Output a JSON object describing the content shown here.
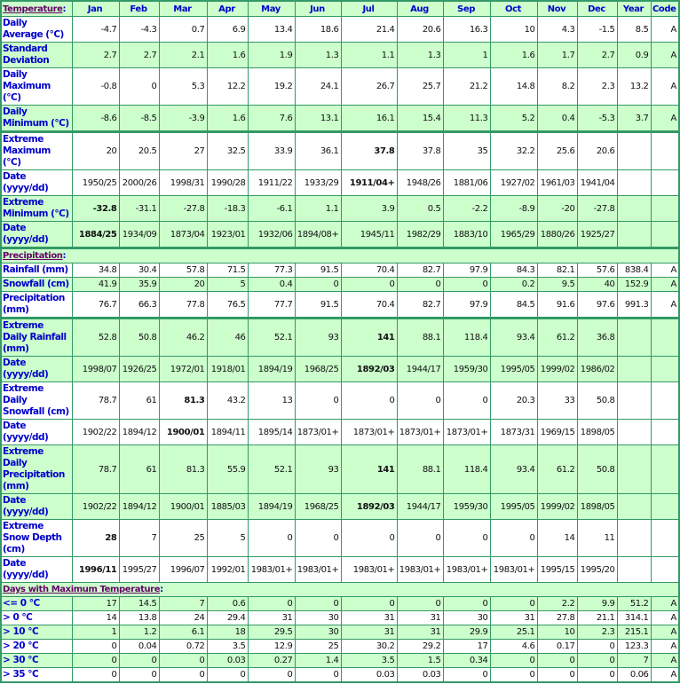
{
  "columns": [
    "Jan",
    "Feb",
    "Mar",
    "Apr",
    "May",
    "Jun",
    "Jul",
    "Aug",
    "Sep",
    "Oct",
    "Nov",
    "Dec",
    "Year",
    "Code"
  ],
  "sections": [
    {
      "title": "Temperature",
      "rows": [
        {
          "label": "Daily Average (°C)",
          "values": [
            "-4.7",
            "-4.3",
            "0.7",
            "6.9",
            "13.4",
            "18.6",
            "21.4",
            "20.6",
            "16.3",
            "10",
            "4.3",
            "-1.5",
            "8.5",
            "A"
          ],
          "bold": []
        },
        {
          "label": "Standard Deviation",
          "values": [
            "2.7",
            "2.7",
            "2.1",
            "1.6",
            "1.9",
            "1.3",
            "1.1",
            "1.3",
            "1",
            "1.6",
            "1.7",
            "2.7",
            "0.9",
            "A"
          ],
          "bold": []
        },
        {
          "label": "Daily Maximum (°C)",
          "values": [
            "-0.8",
            "0",
            "5.3",
            "12.2",
            "19.2",
            "24.1",
            "26.7",
            "25.7",
            "21.2",
            "14.8",
            "8.2",
            "2.3",
            "13.2",
            "A"
          ],
          "bold": []
        },
        {
          "label": "Daily Minimum (°C)",
          "values": [
            "-8.6",
            "-8.5",
            "-3.9",
            "1.6",
            "7.6",
            "13.1",
            "16.1",
            "15.4",
            "11.3",
            "5.2",
            "0.4",
            "-5.3",
            "3.7",
            "A"
          ],
          "bold": []
        },
        {
          "label": "Extreme Maximum (°C)",
          "values": [
            "20",
            "20.5",
            "27",
            "32.5",
            "33.9",
            "36.1",
            "37.8",
            "37.8",
            "35",
            "32.2",
            "25.6",
            "20.6",
            "",
            ""
          ],
          "bold": [
            6
          ]
        },
        {
          "label": "Date (yyyy/dd)",
          "values": [
            "1950/25",
            "2000/26",
            "1998/31",
            "1990/28",
            "1911/22",
            "1933/29",
            "1911/04+",
            "1948/26",
            "1881/06",
            "1927/02",
            "1961/03",
            "1941/04",
            "",
            ""
          ],
          "bold": [
            6
          ]
        },
        {
          "label": "Extreme Minimum (°C)",
          "values": [
            "-32.8",
            "-31.1",
            "-27.8",
            "-18.3",
            "-6.1",
            "1.1",
            "3.9",
            "0.5",
            "-2.2",
            "-8.9",
            "-20",
            "-27.8",
            "",
            ""
          ],
          "bold": [
            0
          ]
        },
        {
          "label": "Date (yyyy/dd)",
          "values": [
            "1884/25",
            "1934/09",
            "1873/04",
            "1923/01",
            "1932/06",
            "1894/08+",
            "1945/11",
            "1982/29",
            "1883/10",
            "1965/29",
            "1880/26",
            "1925/27",
            "",
            ""
          ],
          "bold": [
            0
          ]
        }
      ]
    },
    {
      "title": "Precipitation",
      "rows": [
        {
          "label": "Rainfall (mm)",
          "values": [
            "34.8",
            "30.4",
            "57.8",
            "71.5",
            "77.3",
            "91.5",
            "70.4",
            "82.7",
            "97.9",
            "84.3",
            "82.1",
            "57.6",
            "838.4",
            "A"
          ],
          "bold": []
        },
        {
          "label": "Snowfall (cm)",
          "values": [
            "41.9",
            "35.9",
            "20",
            "5",
            "0.4",
            "0",
            "0",
            "0",
            "0",
            "0.2",
            "9.5",
            "40",
            "152.9",
            "A"
          ],
          "bold": []
        },
        {
          "label": "Precipitation (mm)",
          "values": [
            "76.7",
            "66.3",
            "77.8",
            "76.5",
            "77.7",
            "91.5",
            "70.4",
            "82.7",
            "97.9",
            "84.5",
            "91.6",
            "97.6",
            "991.3",
            "A"
          ],
          "bold": []
        },
        {
          "label": "Extreme Daily Rainfall (mm)",
          "values": [
            "52.8",
            "50.8",
            "46.2",
            "46",
            "52.1",
            "93",
            "141",
            "88.1",
            "118.4",
            "93.4",
            "61.2",
            "36.8",
            "",
            ""
          ],
          "bold": [
            6
          ]
        },
        {
          "label": "Date (yyyy/dd)",
          "values": [
            "1998/07",
            "1926/25",
            "1972/01",
            "1918/01",
            "1894/19",
            "1968/25",
            "1892/03",
            "1944/17",
            "1959/30",
            "1995/05",
            "1999/02",
            "1986/02",
            "",
            ""
          ],
          "bold": [
            6
          ]
        },
        {
          "label": "Extreme Daily Snowfall (cm)",
          "values": [
            "78.7",
            "61",
            "81.3",
            "43.2",
            "13",
            "0",
            "0",
            "0",
            "0",
            "20.3",
            "33",
            "50.8",
            "",
            ""
          ],
          "bold": [
            2
          ]
        },
        {
          "label": "Date (yyyy/dd)",
          "values": [
            "1902/22",
            "1894/12",
            "1900/01",
            "1894/11",
            "1895/14",
            "1873/01+",
            "1873/01+",
            "1873/01+",
            "1873/01+",
            "1873/31",
            "1969/15",
            "1898/05",
            "",
            ""
          ],
          "bold": [
            2
          ]
        },
        {
          "label": "Extreme Daily Precipitation (mm)",
          "values": [
            "78.7",
            "61",
            "81.3",
            "55.9",
            "52.1",
            "93",
            "141",
            "88.1",
            "118.4",
            "93.4",
            "61.2",
            "50.8",
            "",
            ""
          ],
          "bold": [
            6
          ]
        },
        {
          "label": "Date (yyyy/dd)",
          "values": [
            "1902/22",
            "1894/12",
            "1900/01",
            "1885/03",
            "1894/19",
            "1968/25",
            "1892/03",
            "1944/17",
            "1959/30",
            "1995/05",
            "1999/02",
            "1898/05",
            "",
            ""
          ],
          "bold": [
            6
          ]
        },
        {
          "label": "Extreme Snow Depth (cm)",
          "values": [
            "28",
            "7",
            "25",
            "5",
            "0",
            "0",
            "0",
            "0",
            "0",
            "0",
            "14",
            "11",
            "",
            ""
          ],
          "bold": [
            0
          ]
        },
        {
          "label": "Date (yyyy/dd)",
          "values": [
            "1996/11",
            "1995/27",
            "1996/07",
            "1992/01",
            "1983/01+",
            "1983/01+",
            "1983/01+",
            "1983/01+",
            "1983/01+",
            "1983/01+",
            "1995/15",
            "1995/20",
            "",
            ""
          ],
          "bold": [
            0
          ]
        }
      ]
    },
    {
      "title": "Days with Maximum Temperature",
      "rows": [
        {
          "label": "<= 0 °C",
          "values": [
            "17",
            "14.5",
            "7",
            "0.6",
            "0",
            "0",
            "0",
            "0",
            "0",
            "0",
            "2.2",
            "9.9",
            "51.2",
            "A"
          ],
          "bold": []
        },
        {
          "label": "> 0 °C",
          "values": [
            "14",
            "13.8",
            "24",
            "29.4",
            "31",
            "30",
            "31",
            "31",
            "30",
            "31",
            "27.8",
            "21.1",
            "314.1",
            "A"
          ],
          "bold": []
        },
        {
          "label": "> 10 °C",
          "values": [
            "1",
            "1.2",
            "6.1",
            "18",
            "29.5",
            "30",
            "31",
            "31",
            "29.9",
            "25.1",
            "10",
            "2.3",
            "215.1",
            "A"
          ],
          "bold": []
        },
        {
          "label": "> 20 °C",
          "values": [
            "0",
            "0.04",
            "0.72",
            "3.5",
            "12.9",
            "25",
            "30.2",
            "29.2",
            "17",
            "4.6",
            "0.17",
            "0",
            "123.3",
            "A"
          ],
          "bold": []
        },
        {
          "label": "> 30 °C",
          "values": [
            "0",
            "0",
            "0",
            "0.03",
            "0.27",
            "1.4",
            "3.5",
            "1.5",
            "0.34",
            "0",
            "0",
            "0",
            "7",
            "A"
          ],
          "bold": []
        },
        {
          "label": "> 35 °C",
          "values": [
            "0",
            "0",
            "0",
            "0",
            "0",
            "0",
            "0.03",
            "0.03",
            "0",
            "0",
            "0",
            "0",
            "0.06",
            "A"
          ],
          "bold": []
        }
      ]
    }
  ],
  "colors": {
    "header_bg": "#ccffcc",
    "border": "#339966",
    "label": "#0000cc",
    "section_link": "#660066"
  }
}
